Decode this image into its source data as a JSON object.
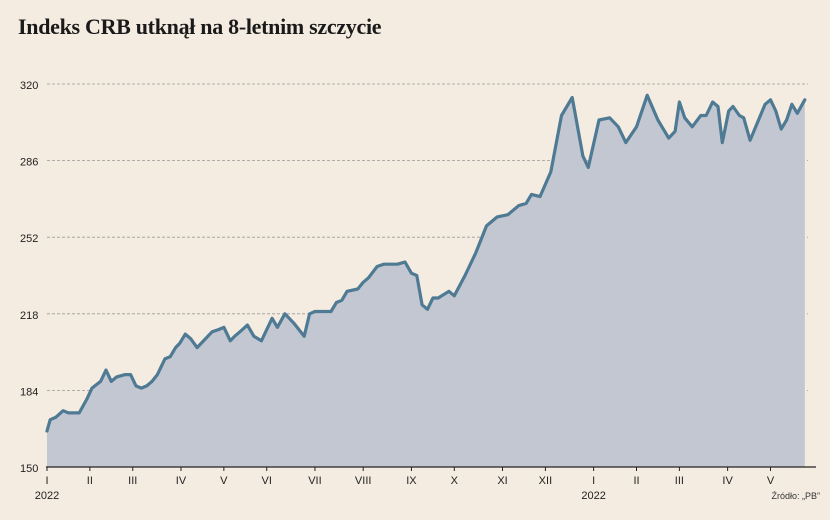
{
  "chart_data": {
    "type": "area",
    "title": "Indeks CRB utknął na 8-letnim szczycie",
    "source": "Źródło: „PB”",
    "ylim": [
      150,
      320
    ],
    "yticks": [
      150,
      184,
      218,
      252,
      286,
      320
    ],
    "ytick_labels": [
      "150",
      "184",
      "218",
      "252",
      "286",
      "320"
    ],
    "xlim": [
      0,
      71
    ],
    "xticks": [
      {
        "x": 0,
        "label": "I",
        "year": "2022"
      },
      {
        "x": 4,
        "label": "II"
      },
      {
        "x": 8,
        "label": "III"
      },
      {
        "x": 12.5,
        "label": "IV"
      },
      {
        "x": 16.5,
        "label": "V"
      },
      {
        "x": 20.5,
        "label": "VI"
      },
      {
        "x": 25,
        "label": "VII"
      },
      {
        "x": 29.5,
        "label": "VIII"
      },
      {
        "x": 34,
        "label": "IX"
      },
      {
        "x": 38,
        "label": "X"
      },
      {
        "x": 42.5,
        "label": "XI"
      },
      {
        "x": 46.5,
        "label": "XII"
      },
      {
        "x": 51,
        "label": "I",
        "year": "2022"
      },
      {
        "x": 55,
        "label": "II"
      },
      {
        "x": 59,
        "label": "III"
      },
      {
        "x": 63.5,
        "label": "IV"
      },
      {
        "x": 67.5,
        "label": "V"
      }
    ],
    "grid": "horizontal-dashed",
    "colors": {
      "line": "#4f7a94",
      "fill": "#c3c7d2",
      "grid": "#999999",
      "axis": "#222222"
    },
    "series": [
      {
        "x": [
          0,
          0.3,
          0.8,
          1.5,
          2,
          2.6,
          3,
          3.7,
          4.2,
          5,
          5.5,
          6,
          6.5,
          7.3,
          7.8,
          8.3,
          8.8,
          9.3,
          9.8,
          10.3,
          11,
          11.5,
          12,
          12.4,
          12.9,
          13.4,
          14,
          14.8,
          15.4,
          16,
          16.5,
          17.1,
          17.5,
          18,
          18.7,
          19.3,
          20,
          21,
          21.5,
          22.2,
          23,
          24,
          24.5,
          25,
          25.5,
          26.5,
          27,
          27.5,
          28,
          29,
          29.5,
          30,
          30.8,
          31.4,
          32,
          32.7,
          33.4,
          34,
          34.5,
          35,
          35.5,
          36,
          36.5,
          37.5,
          38,
          39,
          40,
          41,
          42,
          43,
          44,
          44.7,
          45.2,
          46,
          47,
          48,
          49,
          50,
          50.5,
          51.5,
          52.5,
          53.3,
          54,
          55,
          56,
          57,
          58,
          58.6,
          59,
          59.5,
          60.2,
          61,
          61.5,
          62.1,
          62.6,
          63,
          63.6,
          64,
          64.6,
          65,
          65.6,
          66.2,
          67,
          67.5,
          68,
          68.5,
          69,
          69.5,
          70,
          70.7
        ],
        "y": [
          166,
          171,
          172,
          175,
          174,
          174,
          174,
          180,
          185,
          188,
          193,
          188,
          190,
          191,
          191,
          186,
          185,
          186,
          188,
          191,
          198,
          199,
          203,
          205,
          209,
          207,
          203,
          207,
          210,
          211,
          212,
          206,
          208,
          210,
          213,
          208,
          206,
          216,
          212,
          218,
          214,
          208,
          218,
          219,
          219,
          219,
          223,
          224,
          228,
          229,
          232,
          234,
          239,
          240,
          240,
          240,
          241,
          236,
          235,
          222,
          220,
          225,
          225,
          228,
          226,
          235,
          245,
          257,
          261,
          262,
          266,
          267,
          271,
          270,
          281,
          306,
          314,
          288,
          283,
          304,
          305,
          301,
          294,
          301,
          315,
          304,
          296,
          299,
          312,
          305,
          301,
          306,
          306,
          312,
          310,
          294,
          308,
          310,
          306,
          305,
          295,
          302,
          311,
          313,
          308,
          300,
          304,
          311,
          307,
          313
        ]
      }
    ]
  }
}
